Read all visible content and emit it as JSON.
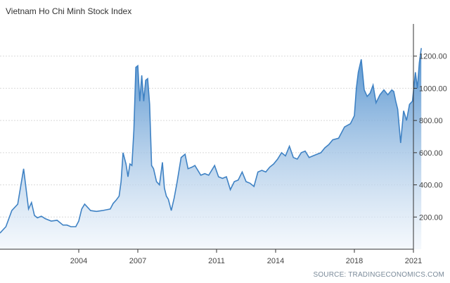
{
  "title": "Vietnam Ho Chi Minh Stock Index",
  "source": "SOURCE: TRADINGECONOMICS.COM",
  "colors": {
    "line": "#3f82c4",
    "fill_top": "#4a8ccc",
    "fill_bottom": "#eef4fb",
    "grid": "#d9d9d9",
    "axis": "#333333"
  },
  "chart_data": {
    "type": "area",
    "title": "Vietnam Ho Chi Minh Stock Index",
    "xlabel": "",
    "ylabel": "",
    "xlim": [
      2000.0,
      2021.0
    ],
    "ylim": [
      0,
      1400
    ],
    "y_ticks": [
      200,
      400,
      600,
      800,
      1000,
      1200
    ],
    "y_tick_labels": [
      "200.00",
      "400.00",
      "600.00",
      "800.00",
      "1000.00",
      "1200.00"
    ],
    "x_ticks": [
      2004,
      2007,
      2011,
      2014,
      2018,
      2021
    ],
    "x_tick_labels": [
      "2004",
      "2007",
      "2011",
      "2014",
      "2018",
      "2021"
    ],
    "grid": "horizontal",
    "series": [
      {
        "x": [
          2000.0,
          2000.3,
          2000.6,
          2000.9,
          2001.2,
          2001.45,
          2001.6,
          2001.75,
          2001.9,
          2002.1,
          2002.3,
          2002.6,
          2002.9,
          2003.2,
          2003.4,
          2003.6,
          2003.85,
          2004.0,
          2004.15,
          2004.3,
          2004.6,
          2004.9,
          2005.2,
          2005.4,
          2005.6,
          2005.75,
          2005.9,
          2006.05,
          2006.15,
          2006.25,
          2006.4,
          2006.5,
          2006.6,
          2006.7,
          2006.8,
          2006.9,
          2007.0,
          2007.1,
          2007.2,
          2007.3,
          2007.4,
          2007.5,
          2007.6,
          2007.7,
          2007.8,
          2007.95,
          2008.1,
          2008.25,
          2008.35,
          2008.45,
          2008.55,
          2008.7,
          2008.85,
          2009.0,
          2009.2,
          2009.4,
          2009.55,
          2009.75,
          2009.9,
          2010.2,
          2010.4,
          2010.6,
          2010.9,
          2011.1,
          2011.3,
          2011.5,
          2011.7,
          2011.9,
          2012.1,
          2012.3,
          2012.5,
          2012.7,
          2012.9,
          2013.1,
          2013.3,
          2013.5,
          2013.7,
          2013.9,
          2014.1,
          2014.3,
          2014.5,
          2014.7,
          2014.9,
          2015.1,
          2015.3,
          2015.5,
          2015.7,
          2015.9,
          2016.1,
          2016.3,
          2016.5,
          2016.7,
          2016.9,
          2017.2,
          2017.5,
          2017.8,
          2018.0,
          2018.1,
          2018.2,
          2018.35,
          2018.5,
          2018.65,
          2018.8,
          2018.95,
          2019.1,
          2019.3,
          2019.5,
          2019.7,
          2019.9,
          2020.0,
          2020.1,
          2020.2,
          2020.35,
          2020.5,
          2020.65,
          2020.8,
          2020.95,
          2021.1,
          2021.2,
          2021.3,
          2021.4
        ],
        "values": [
          100,
          140,
          240,
          280,
          500,
          250,
          290,
          210,
          195,
          205,
          190,
          175,
          180,
          150,
          150,
          140,
          140,
          175,
          250,
          280,
          240,
          235,
          240,
          245,
          250,
          285,
          305,
          330,
          420,
          600,
          530,
          450,
          530,
          520,
          740,
          1130,
          1140,
          920,
          1080,
          920,
          1050,
          1060,
          900,
          520,
          500,
          420,
          400,
          540,
          380,
          330,
          310,
          240,
          320,
          420,
          570,
          590,
          500,
          510,
          520,
          460,
          470,
          460,
          520,
          450,
          440,
          450,
          370,
          420,
          430,
          480,
          420,
          410,
          390,
          480,
          490,
          480,
          510,
          530,
          560,
          600,
          580,
          640,
          570,
          560,
          600,
          610,
          570,
          580,
          590,
          600,
          630,
          650,
          680,
          690,
          760,
          780,
          830,
          1000,
          1100,
          1180,
          990,
          950,
          970,
          1020,
          910,
          960,
          990,
          960,
          990,
          980,
          920,
          870,
          660,
          860,
          800,
          900,
          920,
          1100,
          1000,
          1160,
          1250
        ],
        "line_color": "#3f82c4"
      }
    ]
  }
}
